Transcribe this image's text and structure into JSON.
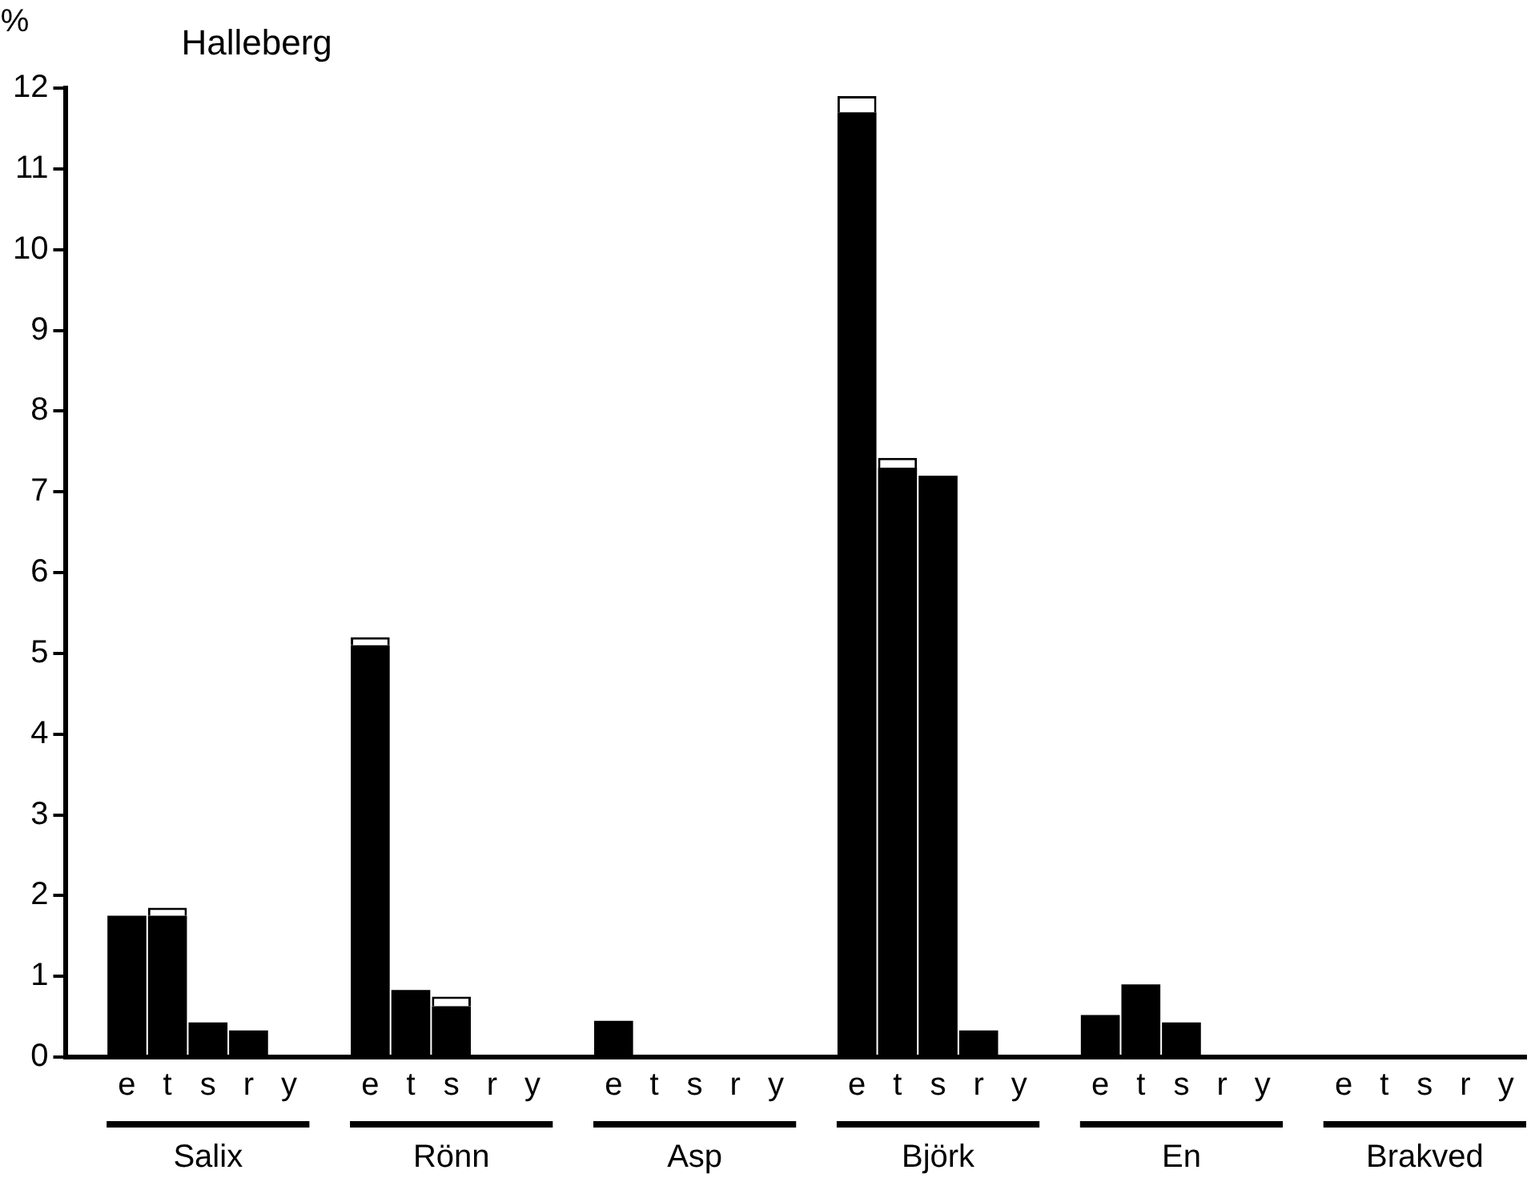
{
  "chart_data": {
    "type": "bar",
    "title": "Halleberg",
    "ylabel": "%",
    "stacked": true,
    "categories": [
      null,
      "e",
      "t",
      "s",
      "r",
      "y",
      null,
      "e",
      "t",
      "s",
      "r",
      "y",
      null,
      "e",
      "t",
      "s",
      "r",
      "y",
      null,
      "e",
      "t",
      "s",
      "r",
      "y",
      null,
      "e",
      "t",
      "s",
      "r",
      "y",
      null,
      "e",
      "t",
      "s",
      "r",
      "y"
    ],
    "series": [
      {
        "color": "#000000",
        "values": [
          null,
          1.75,
          1.75,
          0.43,
          0.33,
          0,
          null,
          5.1,
          0.83,
          0.63,
          0,
          0,
          null,
          0.45,
          0,
          0,
          0,
          0,
          null,
          11.7,
          7.3,
          7.2,
          0.33,
          0,
          null,
          0.52,
          0.9,
          0.43,
          0,
          0,
          null,
          0,
          0,
          0,
          0,
          0
        ]
      },
      {
        "color": "#ffffff",
        "values": [
          null,
          0,
          0.1,
          0,
          0,
          0,
          null,
          0.1,
          0,
          0.12,
          0,
          0,
          null,
          0,
          0,
          0,
          0,
          0,
          null,
          0.2,
          0.12,
          0,
          0,
          0,
          null,
          0,
          0,
          0,
          0,
          0,
          null,
          0,
          0,
          0,
          0,
          0
        ]
      }
    ],
    "annotations": [
      "Salix",
      "Rönn",
      "Asp",
      "Björk",
      "En",
      "Brakved"
    ],
    "ylim": [
      0,
      12
    ],
    "yticks": [
      0,
      1,
      2,
      3,
      4,
      5,
      6,
      7,
      8,
      9,
      10,
      11,
      12
    ],
    "grid": false,
    "legend": false
  }
}
